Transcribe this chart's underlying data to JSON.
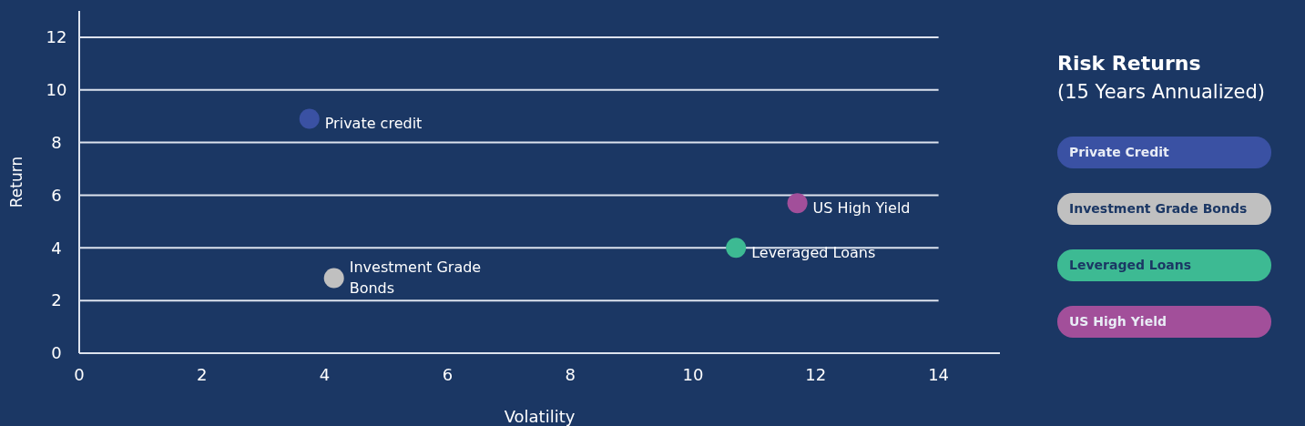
{
  "chart_data": {
    "type": "scatter",
    "title": "Risk Returns",
    "subtitle": "(15 Years Annualized)",
    "xlabel": "Volatility",
    "ylabel": "Return",
    "xlim": [
      0,
      15
    ],
    "xticks": [
      0,
      2,
      4,
      6,
      8,
      10,
      12,
      14
    ],
    "ylim": [
      0,
      13
    ],
    "yticks": [
      0,
      2,
      4,
      6,
      8,
      10,
      12
    ],
    "grid": "y",
    "legend": "right",
    "marker": "circle",
    "series": [
      {
        "name": "Private Credit",
        "color": "#3a51a3",
        "x": [
          3.75
        ],
        "values": [
          8.9
        ]
      },
      {
        "name": "Investment Grade Bonds",
        "color": "#c0c0c0",
        "x": [
          4.15
        ],
        "values": [
          2.85
        ]
      },
      {
        "name": "Leveraged Loans",
        "color": "#3dba93",
        "x": [
          10.7
        ],
        "values": [
          4.0
        ]
      },
      {
        "name": "US High Yield",
        "color": "#a24f9a",
        "x": [
          11.7
        ],
        "values": [
          5.7
        ]
      }
    ],
    "annotations": [
      {
        "text": "Private credit",
        "x": 3.75,
        "y": 8.9
      },
      {
        "text": "Investment Grade Bonds",
        "x": 4.15,
        "y": 2.85
      },
      {
        "text": "Leveraged Loans",
        "x": 10.7,
        "y": 4.0
      },
      {
        "text": "US High Yield",
        "x": 11.7,
        "y": 5.7
      }
    ]
  }
}
